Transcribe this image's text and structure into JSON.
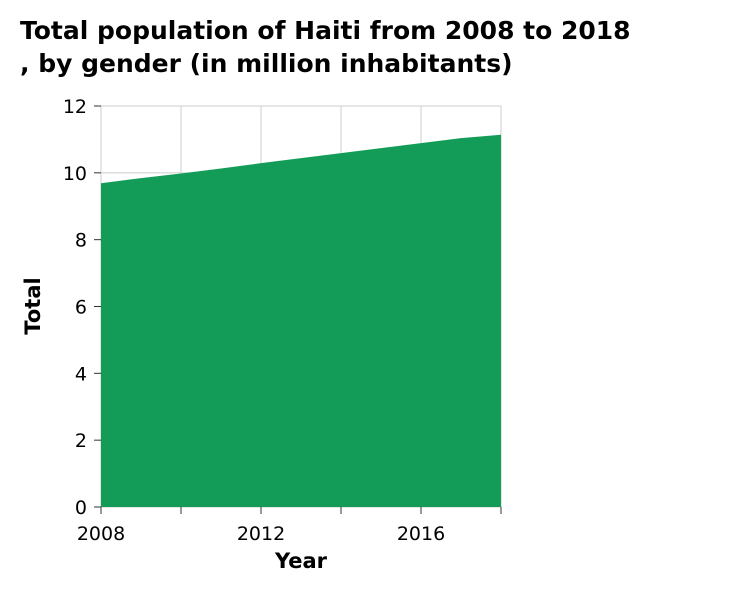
{
  "chart_data": {
    "type": "area",
    "title_line1": "Total population of Haiti from 2008 to 2018",
    "title_line2": ", by gender (in million inhabitants)",
    "xlabel": "Year",
    "ylabel": "Total",
    "x": [
      2008,
      2009,
      2010,
      2011,
      2012,
      2013,
      2014,
      2015,
      2016,
      2017,
      2018
    ],
    "series": [
      {
        "values": [
          9.69,
          9.84,
          9.98,
          10.13,
          10.29,
          10.44,
          10.59,
          10.74,
          10.89,
          11.04,
          11.14
        ]
      }
    ],
    "xlim": [
      2008,
      2018
    ],
    "ylim": [
      0,
      12
    ],
    "x_ticks": [
      2008,
      2010,
      2012,
      2014,
      2016,
      2018
    ],
    "x_tick_labels": [
      "2008",
      "",
      "2012",
      "",
      "2016",
      ""
    ],
    "y_ticks": [
      0,
      2,
      4,
      6,
      8,
      10,
      12
    ],
    "y_tick_labels": [
      "0",
      "2",
      "4",
      "6",
      "8",
      "10",
      "12"
    ],
    "grid": true,
    "fill_color": "#139c57",
    "grid_color": "#cccccc"
  }
}
